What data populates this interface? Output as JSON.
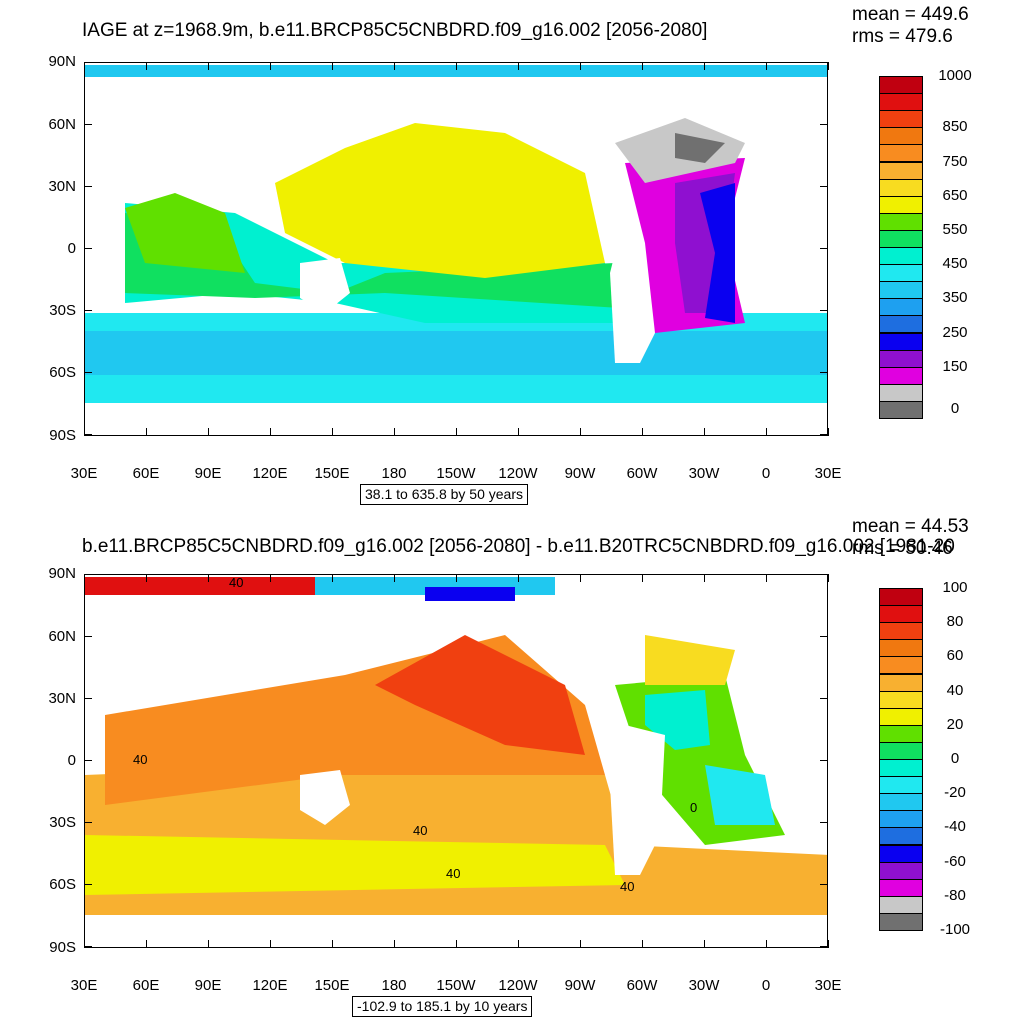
{
  "panels": [
    {
      "title": "IAGE at z=1968.9m, b.e11.BRCP85C5CNBDRD.f09_g16.002 [2056-2080]",
      "mean_text": "mean = 449.6",
      "rms_text": "rms = 479.6",
      "info_text": "38.1 to 635.8 by 50 years",
      "colorbar": {
        "colors": [
          "#707070",
          "#c8c8c8",
          "#e000e0",
          "#8f10d0",
          "#0a00f0",
          "#1e6ee0",
          "#1ea0f0",
          "#20c8f0",
          "#20e8f0",
          "#00f0d0",
          "#10e060",
          "#60e000",
          "#f0f000",
          "#f8dc20",
          "#f8b030",
          "#f88c20",
          "#f07810",
          "#f04010",
          "#e01010",
          "#c00010"
        ],
        "labels": [
          {
            "value": "1000",
            "index": 20
          },
          {
            "value": "850",
            "index": 17
          },
          {
            "value": "750",
            "index": 15
          },
          {
            "value": "650",
            "index": 13
          },
          {
            "value": "550",
            "index": 11
          },
          {
            "value": "450",
            "index": 9
          },
          {
            "value": "350",
            "index": 7
          },
          {
            "value": "250",
            "index": 5
          },
          {
            "value": "150",
            "index": 3
          },
          {
            "value": "0",
            "index": 0.5
          }
        ]
      }
    },
    {
      "title": "b.e11.BRCP85C5CNBDRD.f09_g16.002 [2056-2080] - b.e11.B20TRC5CNBDRD.f09_g16.002 [1981-20",
      "mean_text": "mean = 44.53",
      "rms_text": "rms = 50.46",
      "info_text": "-102.9 to 185.1 by 10 years",
      "contour_labels": [
        "40",
        "40",
        "40",
        "40",
        "0",
        "40"
      ],
      "colorbar": {
        "colors": [
          "#707070",
          "#c8c8c8",
          "#e000e0",
          "#8f10d0",
          "#0a00f0",
          "#1e6ee0",
          "#1ea0f0",
          "#20c8f0",
          "#20e8f0",
          "#00f0d0",
          "#10e060",
          "#60e000",
          "#f0f000",
          "#f8dc20",
          "#f8b030",
          "#f88c20",
          "#f07810",
          "#f04010",
          "#e01010",
          "#c00010"
        ],
        "labels": [
          {
            "value": "100",
            "index": 20
          },
          {
            "value": "80",
            "index": 18
          },
          {
            "value": "60",
            "index": 16
          },
          {
            "value": "40",
            "index": 14
          },
          {
            "value": "20",
            "index": 12
          },
          {
            "value": "0",
            "index": 10
          },
          {
            "value": "-20",
            "index": 8
          },
          {
            "value": "-40",
            "index": 6
          },
          {
            "value": "-60",
            "index": 4
          },
          {
            "value": "-80",
            "index": 2
          },
          {
            "value": "-100",
            "index": 0
          }
        ]
      }
    }
  ],
  "axes": {
    "lat_labels": [
      "90N",
      "60N",
      "30N",
      "0",
      "30S",
      "60S",
      "90S"
    ],
    "lon_labels": [
      "30E",
      "60E",
      "90E",
      "120E",
      "150E",
      "180",
      "150W",
      "120W",
      "90W",
      "60W",
      "30W",
      "0",
      "30E"
    ]
  },
  "colors": {
    "land": "#ffffff",
    "frame": "#000000"
  }
}
